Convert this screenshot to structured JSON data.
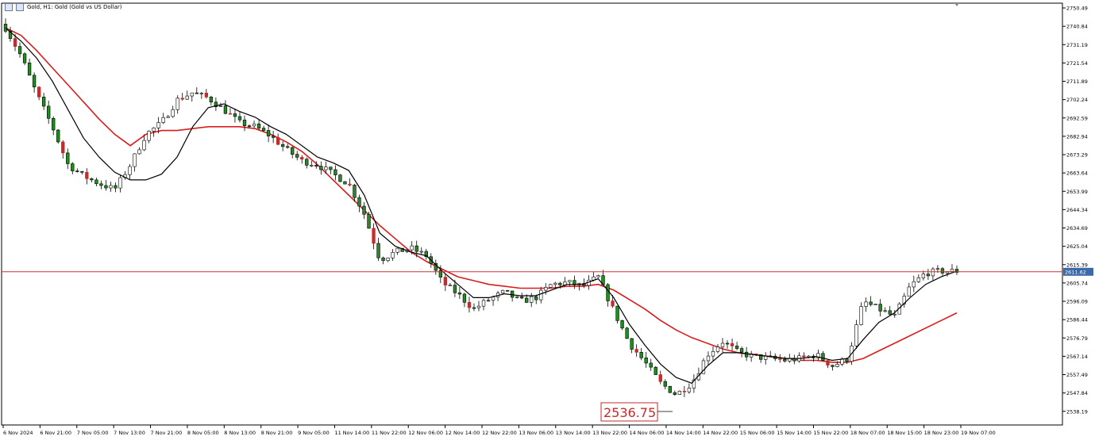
{
  "title": "Gold, H1: Gold (Gold vs US Dollar)",
  "annotation": {
    "label": "2536.75"
  },
  "current_price_label": "2611.62",
  "colors": {
    "bull_body": "#ffffff",
    "bull_stroke": "#000000",
    "bear_body": "#228b22",
    "candle_red": "#c42b2b",
    "ma_slow": "#d91c1c",
    "ma_fast": "#000000",
    "price_line": "#cc3333",
    "axis": "#000000",
    "grid": "#ffffff"
  },
  "chart_data": {
    "type": "candlestick",
    "title": "Gold, H1: Gold (Gold vs US Dollar)",
    "ylim": [
      2531.0,
      2753.0
    ],
    "yticks": [
      "2750.49",
      "2740.84",
      "2731.19",
      "2721.54",
      "2711.89",
      "2702.24",
      "2692.59",
      "2682.94",
      "2673.29",
      "2663.64",
      "2653.99",
      "2644.34",
      "2634.69",
      "2625.04",
      "2615.39",
      "2605.74",
      "2596.09",
      "2586.44",
      "2576.79",
      "2567.14",
      "2557.49",
      "2547.84",
      "2538.19"
    ],
    "xticks": [
      "6 Nov 2024",
      "6 Nov 21:00",
      "7 Nov 05:00",
      "7 Nov 13:00",
      "7 Nov 21:00",
      "8 Nov 05:00",
      "8 Nov 13:00",
      "8 Nov 21:00",
      "9 Nov 05:00",
      "11 Nov 14:00",
      "11 Nov 22:00",
      "12 Nov 06:00",
      "12 Nov 14:00",
      "12 Nov 22:00",
      "13 Nov 06:00",
      "13 Nov 14:00",
      "13 Nov 22:00",
      "14 Nov 06:00",
      "14 Nov 14:00",
      "14 Nov 22:00",
      "15 Nov 06:00",
      "15 Nov 14:00",
      "15 Nov 22:00",
      "18 Nov 07:00",
      "18 Nov 15:00",
      "18 Nov 23:00",
      "19 Nov 07:00"
    ],
    "price_line": 2611.62,
    "annotation_value": 2536.75,
    "close_anchors": [
      2740,
      2725,
      2705,
      2688,
      2668,
      2662,
      2658,
      2655,
      2668,
      2684,
      2690,
      2702,
      2706,
      2703,
      2697,
      2690,
      2688,
      2683,
      2676,
      2670,
      2668,
      2663,
      2658,
      2642,
      2618,
      2622,
      2624,
      2620,
      2606,
      2600,
      2592,
      2597,
      2601,
      2596,
      2598,
      2605,
      2606,
      2604,
      2609,
      2591,
      2574,
      2564,
      2553,
      2547,
      2553,
      2568,
      2575,
      2569,
      2567,
      2566,
      2565,
      2566,
      2568,
      2562,
      2566,
      2596,
      2592,
      2588,
      2604,
      2611,
      2612,
      2612
    ],
    "series": [
      {
        "name": "",
        "values": [
          2740,
          2733,
          2724,
          2712,
          2697,
          2682,
          2672,
          2664,
          2660,
          2660,
          2663,
          2672,
          2688,
          2698,
          2700,
          2696,
          2693,
          2688,
          2684,
          2678,
          2672,
          2669,
          2665,
          2652,
          2632,
          2625,
          2622,
          2620,
          2612,
          2605,
          2598,
          2598,
          2600,
          2599,
          2599,
          2602,
          2605,
          2605,
          2608,
          2598,
          2584,
          2573,
          2563,
          2556,
          2553,
          2562,
          2569,
          2569,
          2568,
          2567,
          2566,
          2566,
          2567,
          2565,
          2566,
          2576,
          2585,
          2590,
          2598,
          2605,
          2609,
          2612
        ]
      },
      {
        "name": "",
        "values": [
          2740,
          2736,
          2728,
          2719,
          2710,
          2701,
          2692,
          2684,
          2678,
          2684,
          2686,
          2686,
          2687,
          2688,
          2688,
          2688,
          2687,
          2684,
          2680,
          2675,
          2668,
          2660,
          2652,
          2644,
          2636,
          2629,
          2622,
          2617,
          2613,
          2609,
          2607,
          2605,
          2604,
          2603,
          2603,
          2603,
          2604,
          2604,
          2605,
          2602,
          2597,
          2592,
          2586,
          2581,
          2577,
          2574,
          2571,
          2569,
          2568,
          2567,
          2566,
          2565,
          2565,
          2564,
          2564,
          2566,
          2570,
          2574,
          2578,
          2582,
          2586,
          2590
        ]
      }
    ]
  }
}
